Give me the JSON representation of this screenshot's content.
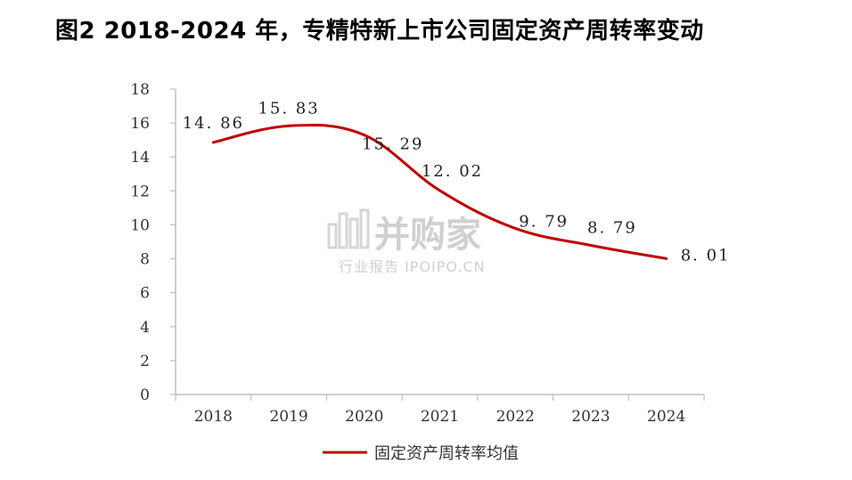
{
  "title": "图2 2018-2024 年，专精特新上市公司固定资产周转率变动",
  "chart_data": {
    "type": "line",
    "title": "图2 2018-2024 年，专精特新上市公司固定资产周转率变动",
    "categories": [
      "2018",
      "2019",
      "2020",
      "2021",
      "2022",
      "2023",
      "2024"
    ],
    "series": [
      {
        "name": "固定资产周转率均值",
        "values": [
          14.86,
          15.83,
          15.29,
          12.02,
          9.79,
          8.79,
          8.01
        ],
        "labels": [
          "14. 86",
          "15. 83",
          "15. 29",
          "12. 02",
          "9. 79",
          "8. 79",
          "8. 01"
        ],
        "color": "#c00000"
      }
    ],
    "ylim": [
      0,
      18
    ],
    "yticks": [
      0,
      2,
      4,
      6,
      8,
      10,
      12,
      14,
      16,
      18
    ],
    "xlabel": "",
    "ylabel": "",
    "grid": false,
    "legend": "bottom"
  },
  "watermark": {
    "main": "并购家",
    "sub": "行业报告 IPOIPO.CN"
  }
}
